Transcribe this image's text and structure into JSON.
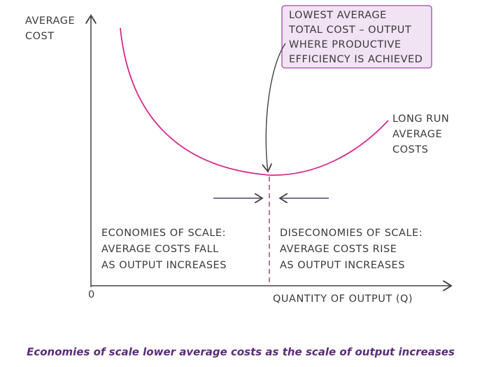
{
  "y_axis_label": [
    "AVERAGE",
    "COST"
  ],
  "origin": "0",
  "x_axis_label": "QUANTITY OF OUTPUT (Q)",
  "callout": [
    "LOWEST AVERAGE",
    "TOTAL COST – OUTPUT",
    "WHERE PRODUCTIVE",
    "EFFICIENCY IS ACHIEVED"
  ],
  "curve_label": [
    "LONG RUN",
    "AVERAGE",
    "COSTS"
  ],
  "left_region": [
    "ECONOMIES OF SCALE:",
    "AVERAGE COSTS FALL",
    "AS OUTPUT INCREASES"
  ],
  "right_region": [
    "DISECONOMIES OF SCALE:",
    "AVERAGE COSTS RISE",
    "AS OUTPUT INCREASES"
  ],
  "caption": "Economies of scale lower average costs as the scale of output increases"
}
